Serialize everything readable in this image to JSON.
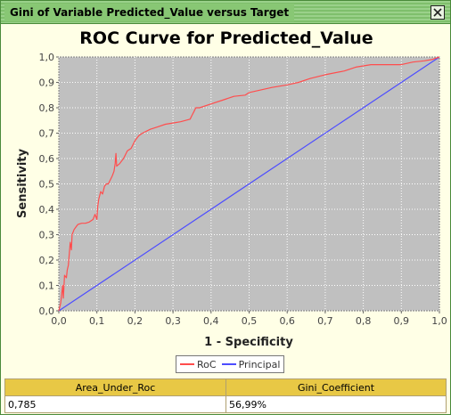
{
  "window": {
    "title": "Gini of Variable Predicted_Value versus Target"
  },
  "chart_data": {
    "type": "line",
    "title": "ROC Curve for Predicted_Value",
    "xlabel": "1 - Specificity",
    "ylabel": "Sensitivity",
    "xlim": [
      0,
      1
    ],
    "ylim": [
      0,
      1
    ],
    "xticks": [
      "0,0",
      "0,1",
      "0,2",
      "0,3",
      "0,4",
      "0,5",
      "0,6",
      "0,7",
      "0,8",
      "0,9",
      "1,0"
    ],
    "yticks": [
      "0,0",
      "0,1",
      "0,2",
      "0,3",
      "0,4",
      "0,5",
      "0,6",
      "0,7",
      "0,8",
      "0,9",
      "1,0"
    ],
    "grid": true,
    "legend_position": "bottom",
    "series": [
      {
        "name": "RoC",
        "color": "#ff4d4d",
        "points": [
          [
            0.0,
            0.0
          ],
          [
            0.005,
            0.03
          ],
          [
            0.01,
            0.1
          ],
          [
            0.012,
            0.05
          ],
          [
            0.015,
            0.14
          ],
          [
            0.02,
            0.13
          ],
          [
            0.022,
            0.16
          ],
          [
            0.025,
            0.18
          ],
          [
            0.03,
            0.27
          ],
          [
            0.033,
            0.24
          ],
          [
            0.035,
            0.3
          ],
          [
            0.04,
            0.32
          ],
          [
            0.045,
            0.33
          ],
          [
            0.05,
            0.34
          ],
          [
            0.06,
            0.345
          ],
          [
            0.07,
            0.345
          ],
          [
            0.08,
            0.35
          ],
          [
            0.09,
            0.36
          ],
          [
            0.095,
            0.38
          ],
          [
            0.1,
            0.36
          ],
          [
            0.102,
            0.41
          ],
          [
            0.105,
            0.44
          ],
          [
            0.11,
            0.47
          ],
          [
            0.115,
            0.46
          ],
          [
            0.12,
            0.49
          ],
          [
            0.125,
            0.5
          ],
          [
            0.13,
            0.5
          ],
          [
            0.14,
            0.53
          ],
          [
            0.145,
            0.55
          ],
          [
            0.148,
            0.58
          ],
          [
            0.15,
            0.62
          ],
          [
            0.152,
            0.57
          ],
          [
            0.16,
            0.58
          ],
          [
            0.17,
            0.6
          ],
          [
            0.18,
            0.63
          ],
          [
            0.19,
            0.64
          ],
          [
            0.2,
            0.67
          ],
          [
            0.21,
            0.69
          ],
          [
            0.22,
            0.7
          ],
          [
            0.24,
            0.715
          ],
          [
            0.26,
            0.725
          ],
          [
            0.28,
            0.735
          ],
          [
            0.3,
            0.74
          ],
          [
            0.32,
            0.745
          ],
          [
            0.345,
            0.755
          ],
          [
            0.35,
            0.77
          ],
          [
            0.355,
            0.785
          ],
          [
            0.36,
            0.8
          ],
          [
            0.37,
            0.8
          ],
          [
            0.4,
            0.815
          ],
          [
            0.43,
            0.83
          ],
          [
            0.46,
            0.845
          ],
          [
            0.49,
            0.85
          ],
          [
            0.5,
            0.86
          ],
          [
            0.53,
            0.87
          ],
          [
            0.56,
            0.88
          ],
          [
            0.6,
            0.89
          ],
          [
            0.63,
            0.9
          ],
          [
            0.66,
            0.915
          ],
          [
            0.7,
            0.93
          ],
          [
            0.75,
            0.945
          ],
          [
            0.78,
            0.96
          ],
          [
            0.82,
            0.97
          ],
          [
            0.86,
            0.97
          ],
          [
            0.9,
            0.97
          ],
          [
            0.93,
            0.98
          ],
          [
            0.96,
            0.985
          ],
          [
            0.98,
            0.99
          ],
          [
            1.0,
            1.0
          ]
        ]
      },
      {
        "name": "Principal",
        "color": "#4d4dff",
        "points": [
          [
            0.0,
            0.0
          ],
          [
            1.0,
            1.0
          ]
        ]
      }
    ]
  },
  "results_table": {
    "headers": [
      "Area_Under_Roc",
      "Gini_Coefficient"
    ],
    "values": [
      "0,785",
      "56,99%"
    ]
  }
}
